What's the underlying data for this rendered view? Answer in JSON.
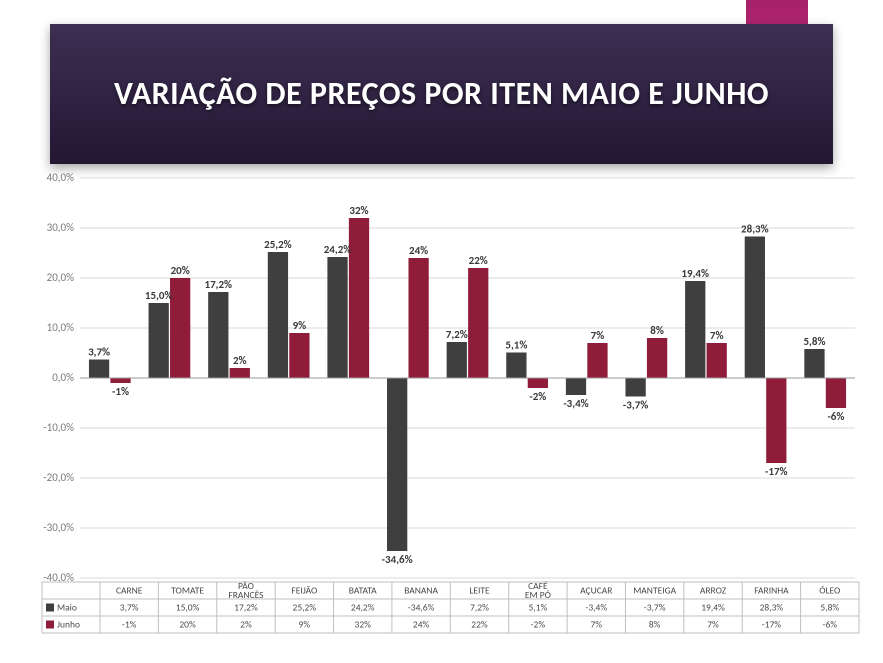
{
  "slide": {
    "title": "VARIAÇÃO DE PREÇOS POR ITEN MAIO E JUNHO",
    "title_fontsize": 32,
    "title_color": "#ffffff",
    "band_gradient_top": "#3d2f52",
    "band_gradient_bottom": "#231734",
    "ribbon_color": "#b2246f",
    "background_color": "#ffffff"
  },
  "chart": {
    "type": "bar",
    "categories": [
      "CARNE",
      "TOMATE",
      "PÃO FRANCÊS",
      "FEIJÃO",
      "BATATA",
      "BANANA",
      "LEITE",
      "CAFÉ EM PÓ",
      "AÇUCAR",
      "MANTEIGA",
      "ARROZ",
      "FARINHA",
      "ÓLEO"
    ],
    "series": [
      {
        "name": "Maio",
        "color": "#3f3f3f",
        "values": [
          3.7,
          15.0,
          17.2,
          25.2,
          24.2,
          -34.6,
          7.2,
          5.1,
          -3.4,
          -3.7,
          19.4,
          28.3,
          5.8
        ],
        "labels": [
          "3,7%",
          "15,0%",
          "17,2%",
          "25,2%",
          "24,2%",
          "-34,6%",
          "7,2%",
          "5,1%",
          "-3,4%",
          "-3,7%",
          "19,4%",
          "28,3%",
          "5,8%"
        ],
        "table_labels": [
          "3,7%",
          "15,0%",
          "17,2%",
          "25,2%",
          "24,2%",
          "-34,6%",
          "7,2%",
          "5,1%",
          "-3,4%",
          "-3,7%",
          "19,4%",
          "28,3%",
          "5,8%"
        ]
      },
      {
        "name": "Junho",
        "color": "#8f1d3a",
        "values": [
          -1,
          20,
          2,
          9,
          32,
          24,
          22,
          -2,
          7,
          8,
          7,
          -17,
          -6
        ],
        "labels": [
          "-1%",
          "20%",
          "2%",
          "9%",
          "32%",
          "24%",
          "22%",
          "-2%",
          "7%",
          "8%",
          "7%",
          "-17%",
          "-6%"
        ],
        "table_labels": [
          "-1%",
          "20%",
          "2%",
          "9%",
          "32%",
          "24%",
          "22%",
          "-2%",
          "7%",
          "8%",
          "7%",
          "-17%",
          "-6%"
        ]
      }
    ],
    "ylim": [
      -40,
      40
    ],
    "ytick_step": 10,
    "ytick_labels": [
      "-40,0%",
      "-30,0%",
      "-20,0%",
      "-10,0%",
      "0,0%",
      "10,0%",
      "20,0%",
      "30,0%",
      "40,0%"
    ],
    "grid_color": "#d9d9d9",
    "axis_font_color": "#7a7a7a",
    "label_fontsize": 11,
    "bar_width": 0.34,
    "bar_gap": 0.02,
    "plot_background": "#ffffff"
  }
}
